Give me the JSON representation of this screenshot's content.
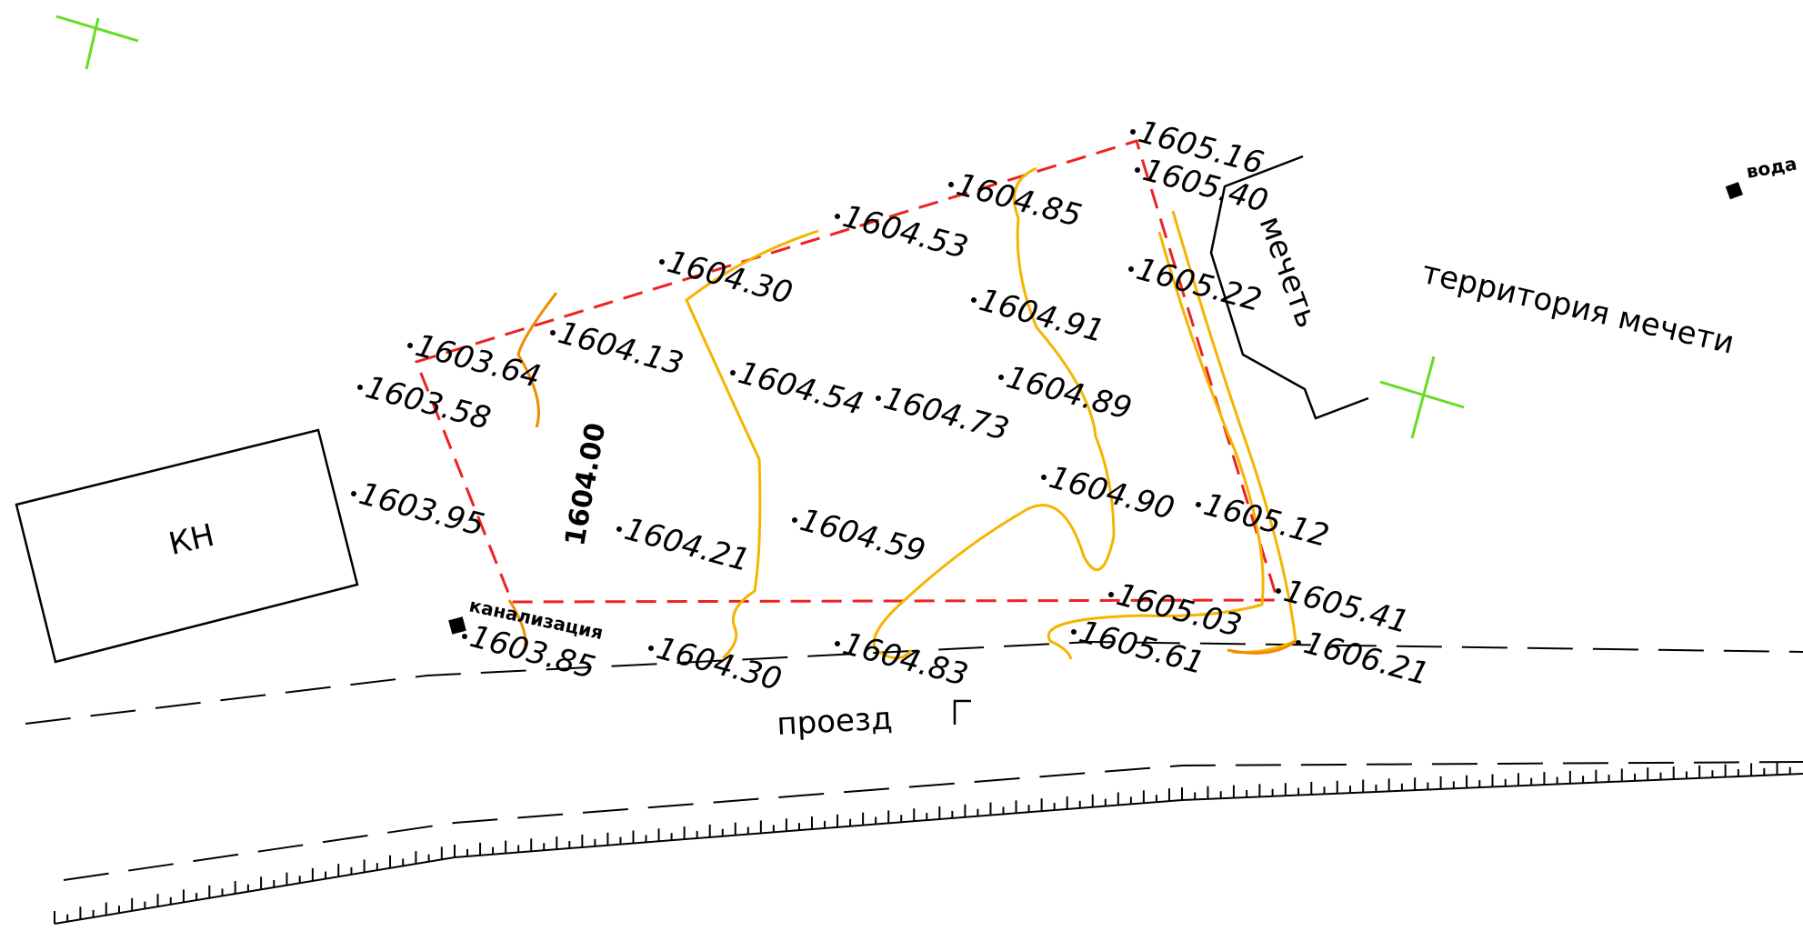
{
  "colors": {
    "boundary": "#ee2222",
    "contour": "#f5b400",
    "contour_index": "#f08a00",
    "grid_cross": "#66dd22",
    "linework": "#000000",
    "background": "#ffffff"
  },
  "labels": {
    "building": "КН",
    "mosque": "мечеть",
    "mosque_territory": "территория мечети",
    "driveway": "проезд",
    "sewer": "канализация",
    "water": "вода",
    "contour_value": "1604.00"
  },
  "elevations": [
    "1605.16",
    "1605.40",
    "1604.85",
    "1604.53",
    "1604.30",
    "1605.22",
    "1604.91",
    "1603.64",
    "1604.13",
    "1603.58",
    "1604.54",
    "1604.73",
    "1604.89",
    "1604.90",
    "1605.12",
    "1603.95",
    "1604.21",
    "1604.59",
    "1605.03",
    "1605.41",
    "1605.61",
    "1606.21",
    "1603.85",
    "1604.30",
    "1604.83"
  ]
}
